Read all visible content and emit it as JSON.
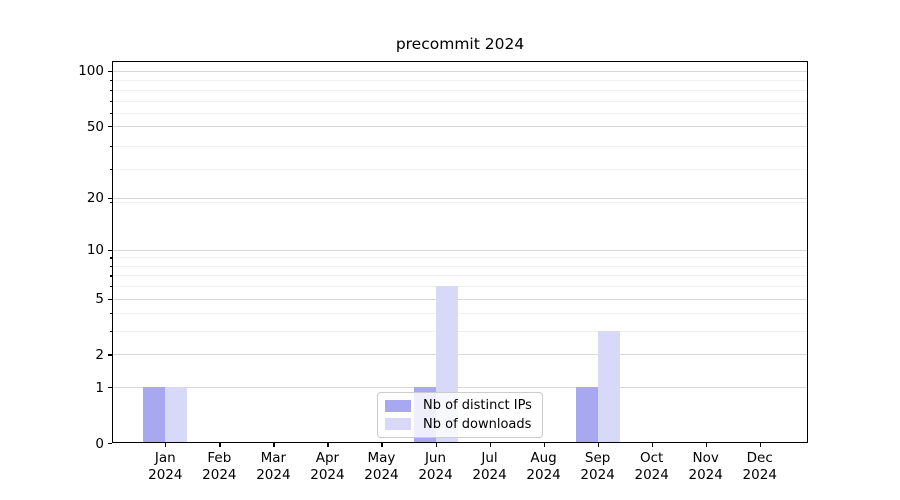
{
  "title": "precommit 2024",
  "chart_data": {
    "type": "bar",
    "title": "precommit 2024",
    "categories": [
      "Jan 2024",
      "Feb 2024",
      "Mar 2024",
      "Apr 2024",
      "May 2024",
      "Jun 2024",
      "Jul 2024",
      "Aug 2024",
      "Sep 2024",
      "Oct 2024",
      "Nov 2024",
      "Dec 2024"
    ],
    "month_labels": [
      "Jan",
      "Feb",
      "Mar",
      "Apr",
      "May",
      "Jun",
      "Jul",
      "Aug",
      "Sep",
      "Oct",
      "Nov",
      "Dec"
    ],
    "year_label": "2024",
    "series": [
      {
        "name": "Nb of distinct IPs",
        "color": "#a8a8f0",
        "values": [
          1,
          0,
          0,
          0,
          0,
          1,
          0,
          0,
          1,
          0,
          0,
          0
        ]
      },
      {
        "name": "Nb of downloads",
        "color": "#d8d8f8",
        "values": [
          1,
          0,
          0,
          0,
          0,
          6,
          0,
          0,
          3,
          0,
          0,
          0
        ]
      }
    ],
    "yscale": "log1p",
    "ylim": [
      0,
      114
    ],
    "yticks_major": [
      0,
      1,
      2,
      5,
      10,
      20,
      50,
      100
    ],
    "yticks_minor": [
      3,
      4,
      6,
      7,
      8,
      9,
      19,
      29,
      39,
      59,
      69,
      79,
      89
    ],
    "grid": "horizontal",
    "legend": {
      "position": "lower center",
      "entries": [
        "Nb of distinct IPs",
        "Nb of downloads"
      ]
    }
  },
  "colors": {
    "major_grid": "#d8d8d8",
    "minor_grid": "#efefef",
    "axis": "#000000",
    "background": "#ffffff",
    "legend_border": "#cccccc"
  }
}
